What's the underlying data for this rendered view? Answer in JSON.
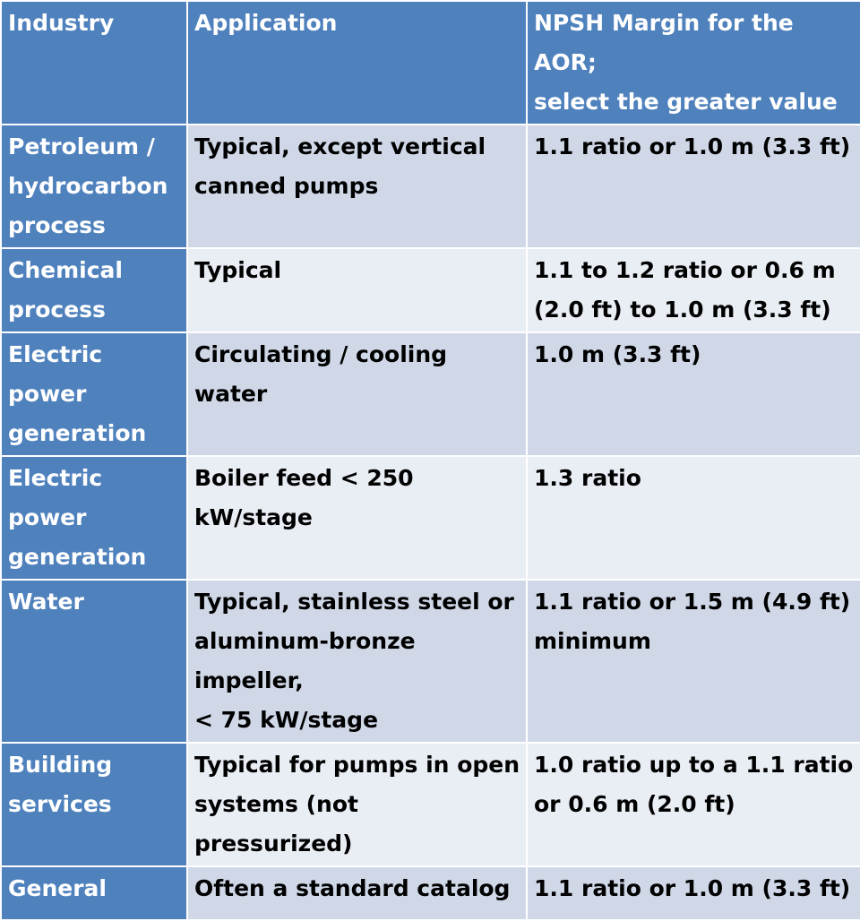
{
  "table": {
    "headers": {
      "industry": "Industry",
      "application": "Application",
      "margin": "NPSH Margin for the AOR;\nselect the greater value"
    },
    "rows": [
      {
        "industry": "Petroleum /\nhydrocarbon\nprocess",
        "application": "Typical, except vertical\ncanned pumps",
        "margin": "1.1 ratio or 1.0 m (3.3 ft)"
      },
      {
        "industry": "Chemical\nprocess",
        "application": "Typical",
        "margin": "1.1 to 1.2 ratio or 0.6 m\n(2.0 ft) to 1.0 m (3.3 ft)"
      },
      {
        "industry": "Electric power\ngeneration",
        "application": "Circulating / cooling water",
        "margin": "1.0 m (3.3 ft)"
      },
      {
        "industry": "Electric power\ngeneration",
        "application": "Boiler feed < 250 kW/stage",
        "margin": "1.3 ratio"
      },
      {
        "industry": "Water",
        "application": "Typical, stainless steel or\naluminum-bronze impeller,\n< 75 kW/stage",
        "margin": "1.1 ratio or 1.5 m (4.9 ft)\nminimum"
      },
      {
        "industry": "Building\nservices",
        "application": "Typical for pumps in open\nsystems (not pressurized)",
        "margin": "1.0 ratio up to a 1.1 ratio\nor 0.6 m (2.0 ft)"
      },
      {
        "industry": "General",
        "application": "Often a standard catalog",
        "margin": "1.1 ratio or 1.0 m (3.3 ft)"
      }
    ]
  }
}
